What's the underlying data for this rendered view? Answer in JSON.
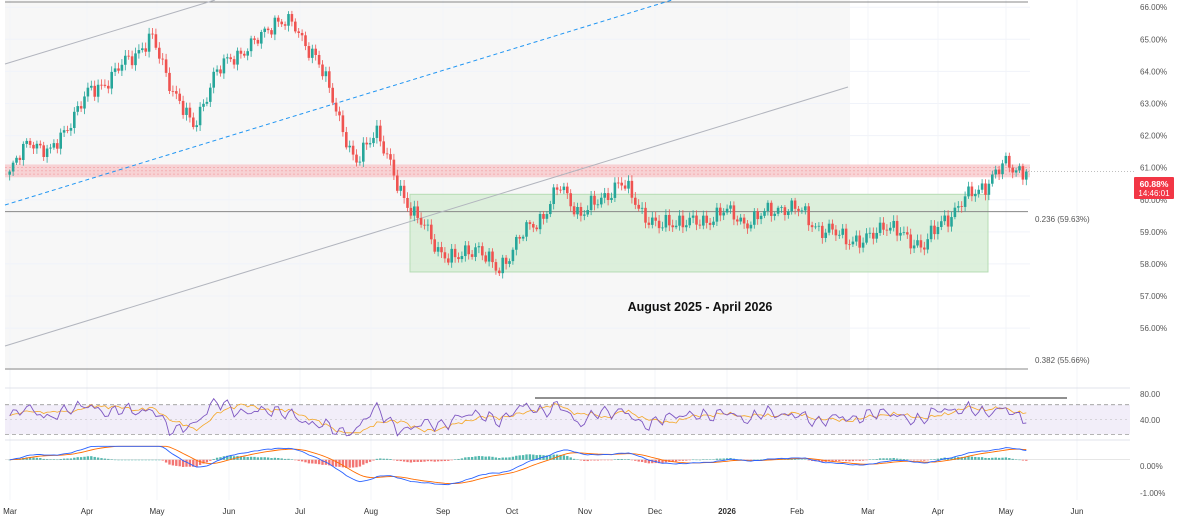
{
  "colors": {
    "up": "#26a69a",
    "down": "#ef5350",
    "bg": "#ffffff",
    "grid": "#f0f3fa",
    "axis_text": "#555555",
    "price_tag": "#f23645",
    "rsi": "#7e57c2",
    "rsi_ma": "#f5a623",
    "macd": "#2962ff",
    "signal": "#ff6d00",
    "zone_red": "#f7c5c8",
    "zone_green": "#d4ecd3",
    "channel": "#b2b5be",
    "dotted": "#2196f3"
  },
  "chart_data": {
    "type": "candlestick",
    "price_axis": {
      "ylim": [
        55.1,
        66.1
      ],
      "ticks": [
        "66.00%",
        "65.00%",
        "64.00%",
        "63.00%",
        "62.00%",
        "61.00%",
        "60.00%",
        "59.00%",
        "58.00%",
        "57.00%",
        "56.00%"
      ],
      "tick_values": [
        66,
        65,
        64,
        63,
        62,
        61,
        60,
        59,
        58,
        57,
        56
      ]
    },
    "x_axis": {
      "labels": [
        "Mar",
        "Apr",
        "May",
        "Jun",
        "Jul",
        "Aug",
        "Sep",
        "Oct",
        "Nov",
        "Dec",
        "2026",
        "Feb",
        "Mar",
        "Apr",
        "May",
        "Jun"
      ],
      "bold": [
        "2026"
      ]
    },
    "current_price": {
      "label": "60.88%",
      "countdown": "14:46:01",
      "value": 60.88
    },
    "fib_levels": [
      {
        "label": "0.236 (59.63%)",
        "value": 59.63
      },
      {
        "label": "0.382 (55.66%)",
        "value": 55.66
      }
    ],
    "zones": [
      {
        "kind": "resistance",
        "from": 60.7,
        "to": 61.1
      },
      {
        "kind": "range",
        "from": 57.75,
        "to": 60.17,
        "label": "August 2025 - April 2026"
      }
    ],
    "close_path": [
      {
        "date": "Mar",
        "value": 60.8
      },
      {
        "date": "Mar",
        "value": 61.9
      },
      {
        "date": "Mar",
        "value": 61.4
      },
      {
        "date": "Apr",
        "value": 62.5
      },
      {
        "date": "Apr",
        "value": 63.4
      },
      {
        "date": "Apr",
        "value": 63.8
      },
      {
        "date": "May",
        "value": 64.5
      },
      {
        "date": "May",
        "value": 65.0
      },
      {
        "date": "May",
        "value": 63.5
      },
      {
        "date": "May",
        "value": 62.2
      },
      {
        "date": "Jun",
        "value": 63.8
      },
      {
        "date": "Jun",
        "value": 64.5
      },
      {
        "date": "Jun",
        "value": 64.8
      },
      {
        "date": "Jun",
        "value": 65.6
      },
      {
        "date": "Jul",
        "value": 65.4
      },
      {
        "date": "Jul",
        "value": 64.5
      },
      {
        "date": "Jul",
        "value": 63.0
      },
      {
        "date": "Jul",
        "value": 61.0
      },
      {
        "date": "Aug",
        "value": 62.3
      },
      {
        "date": "Aug",
        "value": 60.5
      },
      {
        "date": "Aug",
        "value": 59.5
      },
      {
        "date": "Aug",
        "value": 58.5
      },
      {
        "date": "Sep",
        "value": 58.1
      },
      {
        "date": "Sep",
        "value": 58.6
      },
      {
        "date": "Sep",
        "value": 57.7
      },
      {
        "date": "Sep",
        "value": 58.8
      },
      {
        "date": "Oct",
        "value": 59.3
      },
      {
        "date": "Oct",
        "value": 60.4
      },
      {
        "date": "Oct",
        "value": 59.6
      },
      {
        "date": "Oct",
        "value": 59.9
      },
      {
        "date": "Nov",
        "value": 60.6
      },
      {
        "date": "Nov",
        "value": 59.7
      },
      {
        "date": "Nov",
        "value": 59.1
      },
      {
        "date": "Dec",
        "value": 59.4
      },
      {
        "date": "Dec",
        "value": 59.2
      },
      {
        "date": "Dec",
        "value": 59.7
      },
      {
        "date": "2026",
        "value": 59.3
      },
      {
        "date": "2026",
        "value": 59.5
      },
      {
        "date": "2026",
        "value": 59.8
      },
      {
        "date": "Feb",
        "value": 59.6
      },
      {
        "date": "Feb",
        "value": 59.0
      },
      {
        "date": "Feb",
        "value": 58.9
      },
      {
        "date": "Mar",
        "value": 58.6
      },
      {
        "date": "Mar",
        "value": 59.3
      },
      {
        "date": "Mar",
        "value": 58.8
      },
      {
        "date": "Apr",
        "value": 58.6
      },
      {
        "date": "Apr",
        "value": 59.4
      },
      {
        "date": "Apr",
        "value": 60.0
      },
      {
        "date": "Apr",
        "value": 60.5
      },
      {
        "date": "May",
        "value": 61.1
      },
      {
        "date": "May",
        "value": 60.88
      }
    ],
    "rsi": {
      "ticks": [
        "80.00",
        "40.00"
      ],
      "tick_values": [
        80,
        40
      ],
      "ylim": [
        25,
        90
      ]
    },
    "macd": {
      "ticks": [
        "0.00%",
        "-1.00%"
      ],
      "tick_values": [
        0,
        -1
      ],
      "ylim": [
        -1.5,
        0.55
      ]
    }
  }
}
